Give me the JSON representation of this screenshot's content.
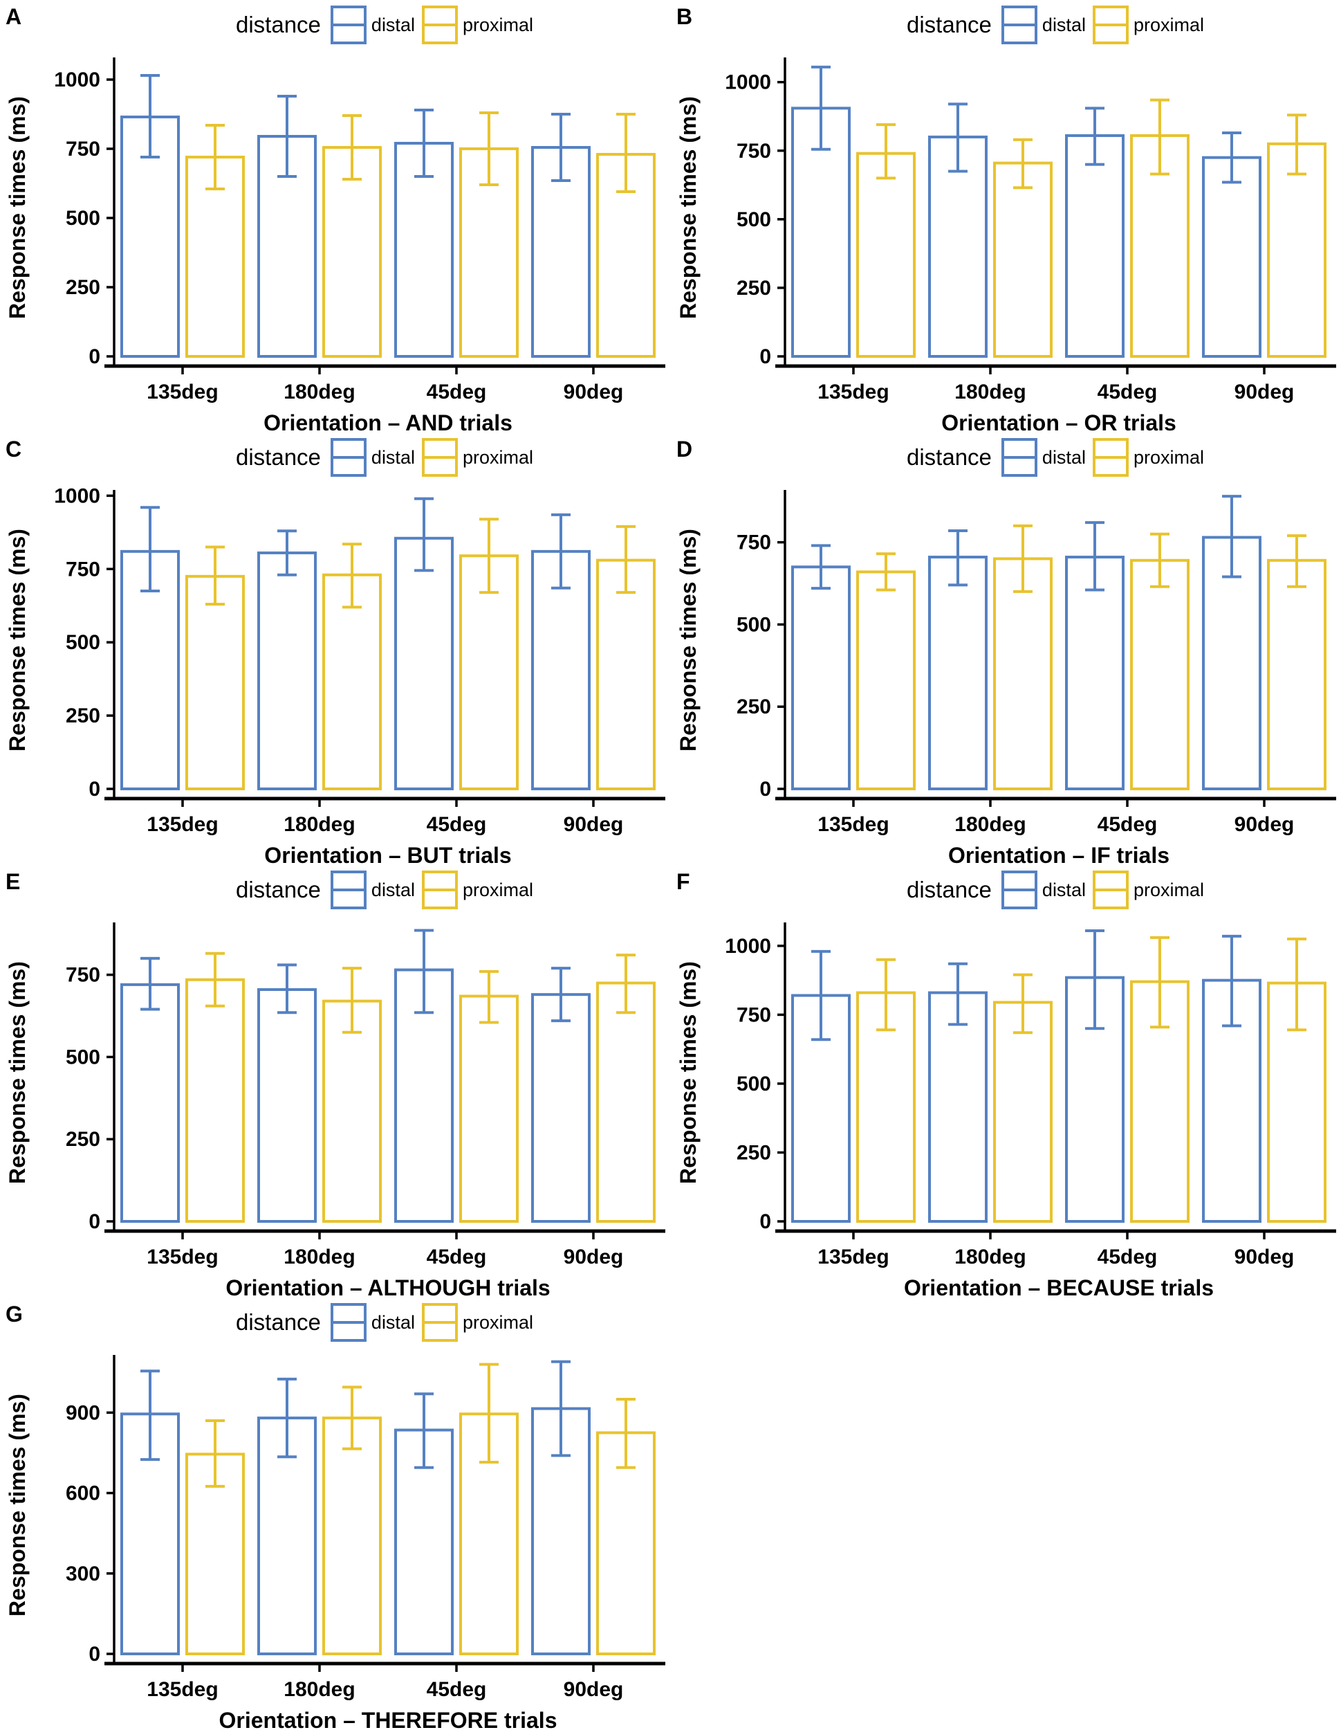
{
  "figure": {
    "ylabel": "Response times (ms)",
    "legend": {
      "title": "distance",
      "entries": [
        {
          "label": "distal",
          "color": "#5581C2"
        },
        {
          "label": "proximal",
          "color": "#E8C32E"
        }
      ]
    },
    "colors": {
      "distal": "#5581C2",
      "proximal": "#E8C32E",
      "axis": "#000000",
      "bar_fill": "#FFFFFF"
    }
  },
  "chart_data": [
    {
      "type": "bar",
      "panel_label": "A",
      "xlabel": "Orientation – AND trials",
      "ylabel": "Response times (ms)",
      "categories": [
        "135deg",
        "180deg",
        "45deg",
        "90deg"
      ],
      "yticks": [
        0,
        250,
        500,
        750,
        1000
      ],
      "ylim": [
        0,
        1075
      ],
      "grid": false,
      "legend_position": "top",
      "series": [
        {
          "name": "distal",
          "color": "#5581C2",
          "values": [
            865,
            795,
            770,
            755
          ],
          "err_low": [
            720,
            650,
            650,
            635
          ],
          "err_high": [
            1015,
            940,
            890,
            875
          ]
        },
        {
          "name": "proximal",
          "color": "#E8C32E",
          "values": [
            720,
            755,
            750,
            730
          ],
          "err_low": [
            605,
            640,
            620,
            595
          ],
          "err_high": [
            835,
            870,
            880,
            875
          ]
        }
      ]
    },
    {
      "type": "bar",
      "panel_label": "B",
      "xlabel": "Orientation – OR trials",
      "ylabel": "Response times (ms)",
      "categories": [
        "135deg",
        "180deg",
        "45deg",
        "90deg"
      ],
      "yticks": [
        0,
        250,
        500,
        750,
        1000
      ],
      "ylim": [
        0,
        1085
      ],
      "grid": false,
      "legend_position": "top",
      "series": [
        {
          "name": "distal",
          "color": "#5581C2",
          "values": [
            905,
            800,
            805,
            725
          ],
          "err_low": [
            755,
            675,
            700,
            635
          ],
          "err_high": [
            1055,
            920,
            905,
            815
          ]
        },
        {
          "name": "proximal",
          "color": "#E8C32E",
          "values": [
            740,
            705,
            805,
            775
          ],
          "err_low": [
            650,
            615,
            665,
            665
          ],
          "err_high": [
            845,
            790,
            935,
            880
          ]
        }
      ]
    },
    {
      "type": "bar",
      "panel_label": "C",
      "xlabel": "Orientation – BUT trials",
      "ylabel": "Response times (ms)",
      "categories": [
        "135deg",
        "180deg",
        "45deg",
        "90deg"
      ],
      "yticks": [
        0,
        250,
        500,
        750,
        1000
      ],
      "ylim": [
        0,
        1015
      ],
      "grid": false,
      "legend_position": "top",
      "series": [
        {
          "name": "distal",
          "color": "#5581C2",
          "values": [
            810,
            805,
            855,
            810
          ],
          "err_low": [
            675,
            730,
            745,
            685
          ],
          "err_high": [
            960,
            880,
            990,
            935
          ]
        },
        {
          "name": "proximal",
          "color": "#E8C32E",
          "values": [
            725,
            730,
            795,
            780
          ],
          "err_low": [
            630,
            620,
            670,
            670
          ],
          "err_high": [
            825,
            835,
            920,
            895
          ]
        }
      ]
    },
    {
      "type": "bar",
      "panel_label": "D",
      "xlabel": "Orientation – IF trials",
      "ylabel": "Response times (ms)",
      "categories": [
        "135deg",
        "180deg",
        "45deg",
        "90deg"
      ],
      "yticks": [
        0,
        250,
        500,
        750
      ],
      "ylim": [
        0,
        905
      ],
      "grid": false,
      "legend_position": "top",
      "series": [
        {
          "name": "distal",
          "color": "#5581C2",
          "values": [
            675,
            705,
            705,
            765
          ],
          "err_low": [
            610,
            620,
            605,
            645
          ],
          "err_high": [
            740,
            785,
            810,
            890
          ]
        },
        {
          "name": "proximal",
          "color": "#E8C32E",
          "values": [
            660,
            700,
            695,
            695
          ],
          "err_low": [
            605,
            600,
            615,
            615
          ],
          "err_high": [
            715,
            800,
            775,
            770
          ]
        }
      ]
    },
    {
      "type": "bar",
      "panel_label": "E",
      "xlabel": "Orientation – ALTHOUGH trials",
      "ylabel": "Response times (ms)",
      "categories": [
        "135deg",
        "180deg",
        "45deg",
        "90deg"
      ],
      "yticks": [
        0,
        250,
        500,
        750
      ],
      "ylim": [
        0,
        905
      ],
      "grid": false,
      "legend_position": "top",
      "series": [
        {
          "name": "distal",
          "color": "#5581C2",
          "values": [
            720,
            705,
            765,
            690
          ],
          "err_low": [
            645,
            635,
            635,
            610
          ],
          "err_high": [
            800,
            780,
            885,
            770
          ]
        },
        {
          "name": "proximal",
          "color": "#E8C32E",
          "values": [
            735,
            670,
            685,
            725
          ],
          "err_low": [
            655,
            575,
            605,
            635
          ],
          "err_high": [
            815,
            770,
            760,
            810
          ]
        }
      ]
    },
    {
      "type": "bar",
      "panel_label": "F",
      "xlabel": "Orientation – BECAUSE trials",
      "ylabel": "Response times (ms)",
      "categories": [
        "135deg",
        "180deg",
        "45deg",
        "90deg"
      ],
      "yticks": [
        0,
        250,
        500,
        750,
        1000
      ],
      "ylim": [
        0,
        1080
      ],
      "grid": false,
      "legend_position": "top",
      "series": [
        {
          "name": "distal",
          "color": "#5581C2",
          "values": [
            820,
            830,
            885,
            875
          ],
          "err_low": [
            660,
            715,
            700,
            710
          ],
          "err_high": [
            980,
            935,
            1055,
            1035
          ]
        },
        {
          "name": "proximal",
          "color": "#E8C32E",
          "values": [
            830,
            795,
            870,
            865
          ],
          "err_low": [
            695,
            685,
            705,
            695
          ],
          "err_high": [
            950,
            895,
            1030,
            1025
          ]
        }
      ]
    },
    {
      "type": "bar",
      "panel_label": "G",
      "xlabel": "Orientation – THEREFORE trials",
      "ylabel": "Response times (ms)",
      "categories": [
        "135deg",
        "180deg",
        "45deg",
        "90deg"
      ],
      "yticks": [
        0,
        300,
        600,
        900
      ],
      "ylim": [
        0,
        1110
      ],
      "grid": false,
      "legend_position": "top",
      "series": [
        {
          "name": "distal",
          "color": "#5581C2",
          "values": [
            895,
            880,
            835,
            915
          ],
          "err_low": [
            725,
            735,
            695,
            740
          ],
          "err_high": [
            1055,
            1025,
            970,
            1090
          ]
        },
        {
          "name": "proximal",
          "color": "#E8C32E",
          "values": [
            745,
            880,
            895,
            825
          ],
          "err_low": [
            625,
            765,
            715,
            695
          ],
          "err_high": [
            870,
            995,
            1080,
            950
          ]
        }
      ]
    }
  ]
}
